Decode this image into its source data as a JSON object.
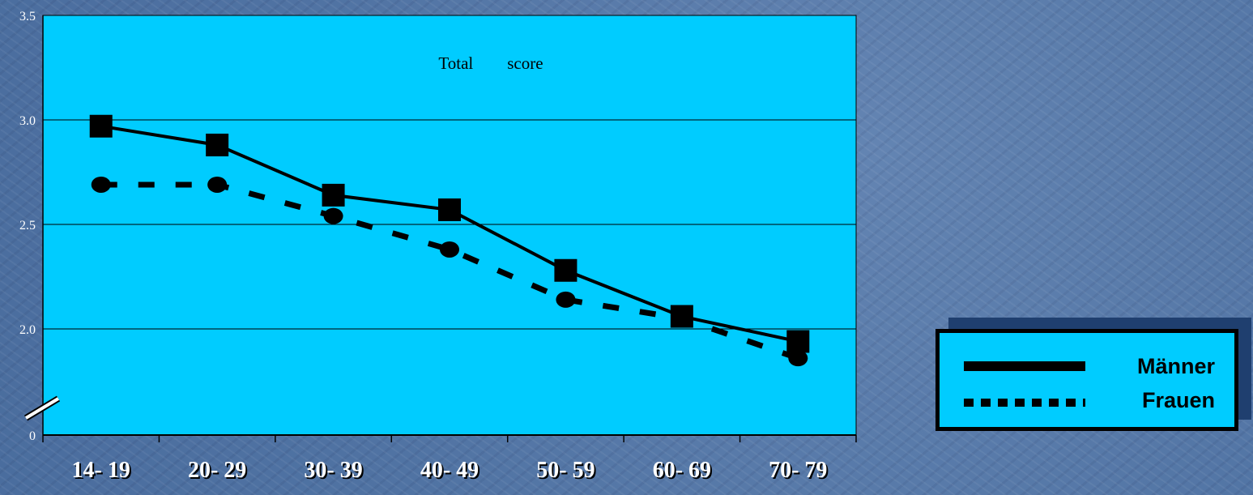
{
  "colors": {
    "plot_background": "#00ccff",
    "line_color": "#000000",
    "page_background": "#5578a8",
    "tick_label_color": "#ffffff"
  },
  "chart_data": {
    "type": "line",
    "title": "Total        score",
    "xlabel": "",
    "ylabel": "",
    "categories": [
      "14- 19",
      "20- 29",
      "30- 39",
      "40- 49",
      "50- 59",
      "60- 69",
      "70- 79"
    ],
    "y_tick_labels": [
      "0",
      "2.0",
      "2.5",
      "3.0",
      "3.5"
    ],
    "y_ticks": [
      2.0,
      2.5,
      3.0,
      3.5
    ],
    "ylim": [
      1.5,
      3.5
    ],
    "y_axis_break": true,
    "grid": "horizontal",
    "legend_position": "right",
    "series": [
      {
        "name": "Männer",
        "style": "solid",
        "marker": "square",
        "values": [
          2.97,
          2.88,
          2.64,
          2.57,
          2.28,
          2.06,
          1.94
        ]
      },
      {
        "name": "Frauen",
        "style": "dotted",
        "marker": "circle",
        "values": [
          2.69,
          2.69,
          2.54,
          2.38,
          2.14,
          2.05,
          1.86
        ]
      }
    ]
  },
  "legend": {
    "items": [
      {
        "label": "Männer",
        "style": "solid"
      },
      {
        "label": "Frauen",
        "style": "dotted"
      }
    ]
  }
}
